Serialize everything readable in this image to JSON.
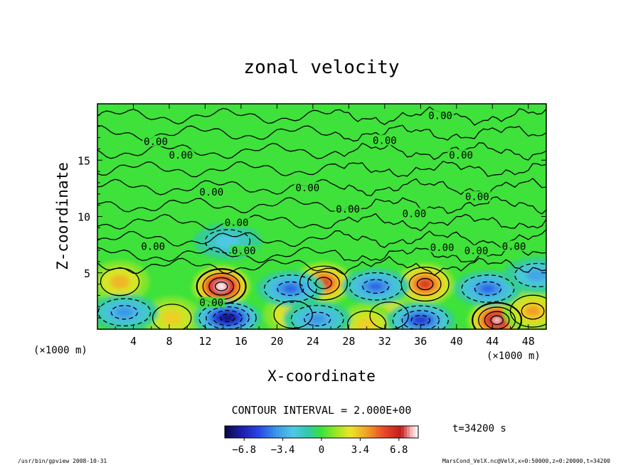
{
  "chart_data": {
    "type": "heatmap",
    "title": "zonal velocity",
    "xlabel": "X-coordinate",
    "ylabel": "Z-coordinate",
    "x_unit_label": "(×1000 m)",
    "z_unit_label": "(×1000 m)",
    "xlim": [
      0,
      50
    ],
    "ylim": [
      0,
      20
    ],
    "x_ticks": [
      4,
      8,
      12,
      16,
      20,
      24,
      28,
      32,
      36,
      40,
      44,
      48
    ],
    "y_ticks": [
      5,
      10,
      15
    ],
    "contour_interval_text": "CONTOUR INTERVAL = 2.000E+00",
    "contour_interval": 2.0,
    "contour_zero_label": "0.00",
    "contour_label_positions": [
      {
        "x": 6.5,
        "z": 16.6
      },
      {
        "x": 9.3,
        "z": 15.4
      },
      {
        "x": 12.7,
        "z": 12.1
      },
      {
        "x": 15.5,
        "z": 9.4
      },
      {
        "x": 6.2,
        "z": 7.3
      },
      {
        "x": 16.3,
        "z": 6.9
      },
      {
        "x": 12.7,
        "z": 2.3
      },
      {
        "x": 23.4,
        "z": 12.5
      },
      {
        "x": 27.9,
        "z": 10.6
      },
      {
        "x": 32.0,
        "z": 16.7
      },
      {
        "x": 35.3,
        "z": 10.2
      },
      {
        "x": 38.2,
        "z": 18.9
      },
      {
        "x": 40.5,
        "z": 15.4
      },
      {
        "x": 42.3,
        "z": 11.7
      },
      {
        "x": 38.4,
        "z": 7.2
      },
      {
        "x": 42.2,
        "z": 6.9
      },
      {
        "x": 46.4,
        "z": 7.3
      }
    ],
    "positive_cores": [
      {
        "x": 2.5,
        "z": 4.2,
        "u": 3.5
      },
      {
        "x": 13.8,
        "z": 3.8,
        "u": 9.0
      },
      {
        "x": 25.2,
        "z": 4.1,
        "u": 6.0
      },
      {
        "x": 36.5,
        "z": 4.0,
        "u": 6.0
      },
      {
        "x": 44.5,
        "z": 0.8,
        "u": 8.0
      },
      {
        "x": 48.5,
        "z": 1.6,
        "u": 4.0
      },
      {
        "x": 21.8,
        "z": 1.3,
        "u": 3.5
      },
      {
        "x": 32.5,
        "z": 1.2,
        "u": 3.0
      },
      {
        "x": 30.0,
        "z": 0.4,
        "u": 3.0
      },
      {
        "x": 8.3,
        "z": 1.0,
        "u": 3.0
      }
    ],
    "negative_cores": [
      {
        "x": 14.5,
        "z": 1.0,
        "u": -8.0
      },
      {
        "x": 3.0,
        "z": 1.5,
        "u": -4.0
      },
      {
        "x": 21.5,
        "z": 3.6,
        "u": -5.0
      },
      {
        "x": 31.0,
        "z": 3.8,
        "u": -5.0
      },
      {
        "x": 43.5,
        "z": 3.6,
        "u": -5.0
      },
      {
        "x": 36.0,
        "z": 0.8,
        "u": -6.0
      },
      {
        "x": 24.5,
        "z": 0.9,
        "u": -4.0
      },
      {
        "x": 49.0,
        "z": 4.8,
        "u": -3.5
      },
      {
        "x": 14.5,
        "z": 7.8,
        "u": -2.5
      }
    ],
    "colorbar": {
      "min": -8.5,
      "max": 8.5,
      "tick_values": [
        -6.8,
        -3.4,
        0,
        3.4,
        6.8
      ],
      "tick_labels": [
        "−6.8",
        "−3.4",
        "0",
        "3.4",
        "6.8"
      ]
    },
    "time_label": "t=34200 s",
    "footer_left": "/usr/bin/gpview  2008-10-31",
    "footer_right": "MarsCond_VelX.nc@VelX,x=0:50000,z=0:20000,t=34200",
    "colors": {
      "background_field": "#3ee23a",
      "frame": "#000000"
    }
  }
}
